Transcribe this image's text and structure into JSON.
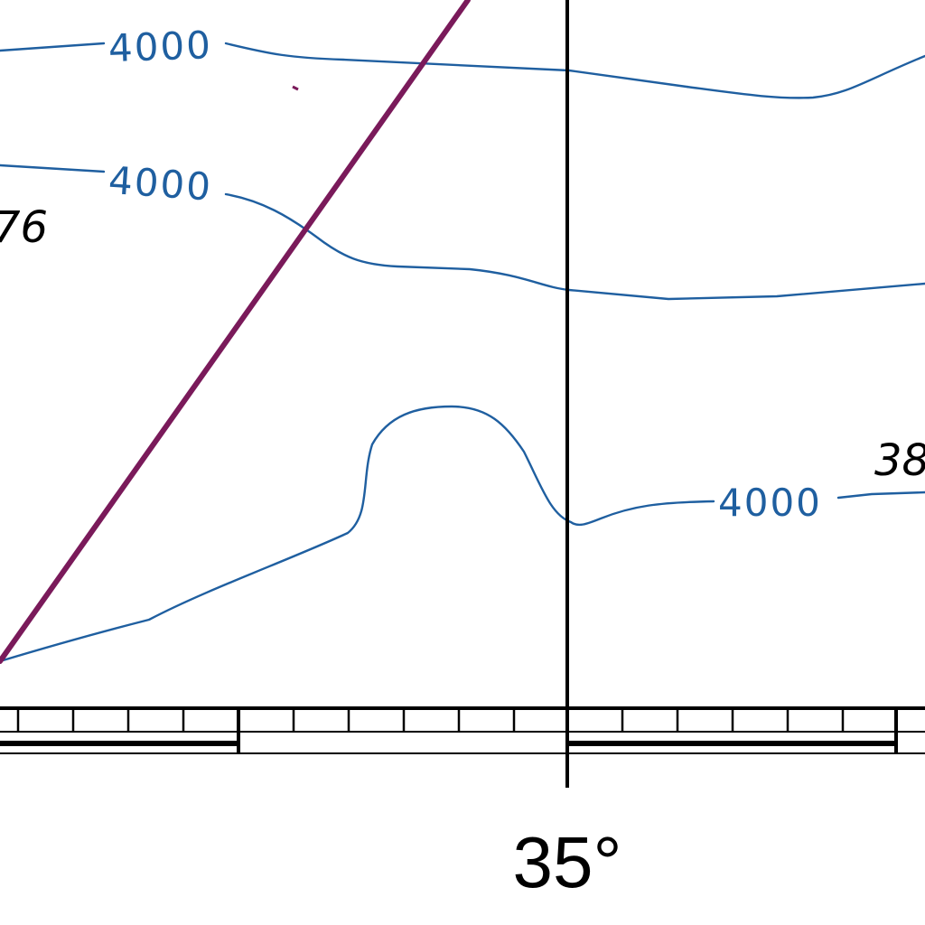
{
  "map": {
    "meridian_label": "35°",
    "contours": [
      {
        "label": "4000"
      },
      {
        "label": "4000"
      },
      {
        "label": "4000"
      }
    ],
    "depth_labels": [
      "76",
      "38"
    ],
    "colors": {
      "contour": "#1f5fa0",
      "track": "#7a1a5a",
      "ink": "#000000",
      "background": "#ffffff"
    }
  }
}
